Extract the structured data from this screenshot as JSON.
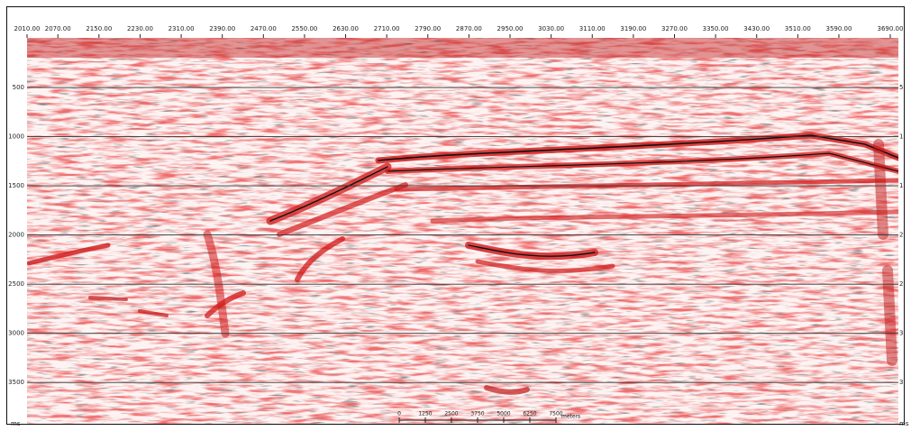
{
  "chart_data": {
    "type": "seismic",
    "xlim": [
      2010,
      3690
    ],
    "xticks": [
      {
        "value": 2010,
        "label": "2010.00"
      },
      {
        "value": 2070,
        "label": "2070.00"
      },
      {
        "value": 2150,
        "label": "2150.00"
      },
      {
        "value": 2230,
        "label": "2230.00"
      },
      {
        "value": 2310,
        "label": "2310.00"
      },
      {
        "value": 2390,
        "label": "2390.00"
      },
      {
        "value": 2470,
        "label": "2470.00"
      },
      {
        "value": 2550,
        "label": "2550.00"
      },
      {
        "value": 2630,
        "label": "2630.00"
      },
      {
        "value": 2710,
        "label": "2710.00"
      },
      {
        "value": 2790,
        "label": "2790.00"
      },
      {
        "value": 2870,
        "label": "2870.00"
      },
      {
        "value": 2950,
        "label": "2950.00"
      },
      {
        "value": 3030,
        "label": "3030.00"
      },
      {
        "value": 3110,
        "label": "3110.00"
      },
      {
        "value": 3190,
        "label": "3190.00"
      },
      {
        "value": 3270,
        "label": "3270.00"
      },
      {
        "value": 3350,
        "label": "3350.00"
      },
      {
        "value": 3430,
        "label": "3430.00"
      },
      {
        "value": 3510,
        "label": "3510.00"
      },
      {
        "value": 3590,
        "label": "3590.00"
      },
      {
        "value": 3690,
        "label": "3690.00"
      }
    ],
    "ylim": [
      0,
      3920
    ],
    "yticks": [
      500,
      1000,
      1500,
      2000,
      2500,
      3000,
      3500
    ],
    "y_unit": "ms",
    "grid": true,
    "scale_bar": {
      "ticks": [
        0,
        1250,
        2500,
        3750,
        5000,
        6250,
        7500
      ],
      "unit": "meters"
    }
  }
}
